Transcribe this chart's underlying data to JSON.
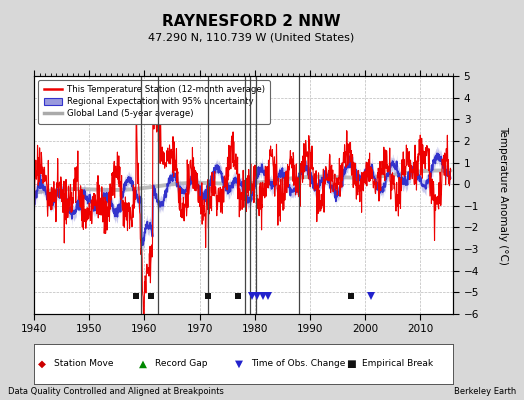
{
  "title": "RAYNESFORD 2 NNW",
  "subtitle": "47.290 N, 110.739 W (United States)",
  "ylabel": "Temperature Anomaly (°C)",
  "xlim": [
    1940,
    2016
  ],
  "ylim": [
    -6,
    5
  ],
  "yticks": [
    -6,
    -5,
    -4,
    -3,
    -2,
    -1,
    0,
    1,
    2,
    3,
    4,
    5
  ],
  "xticks": [
    1940,
    1950,
    1960,
    1970,
    1980,
    1990,
    2000,
    2010
  ],
  "bg_color": "#d8d8d8",
  "plot_bg_color": "#ffffff",
  "grid_color": "#bbbbbb",
  "station_color": "#ee0000",
  "regional_color": "#3333cc",
  "regional_fill_color": "#9999dd",
  "global_color": "#bbbbbb",
  "vertical_line_color": "#444444",
  "vertical_lines": [
    1959.3,
    1962.5,
    1971.5,
    1978.2,
    1979.2,
    1980.3,
    1988.0
  ],
  "empirical_breaks": [
    1958.5,
    1961.2,
    1971.5,
    1977.0,
    1997.5
  ],
  "obs_changes": [
    1979.5,
    1980.5,
    1981.5,
    1982.5,
    2001.0
  ],
  "footnote_left": "Data Quality Controlled and Aligned at Breakpoints",
  "footnote_right": "Berkeley Earth",
  "legend_labels": [
    "This Temperature Station (12-month average)",
    "Regional Expectation with 95% uncertainty",
    "Global Land (5-year average)"
  ]
}
